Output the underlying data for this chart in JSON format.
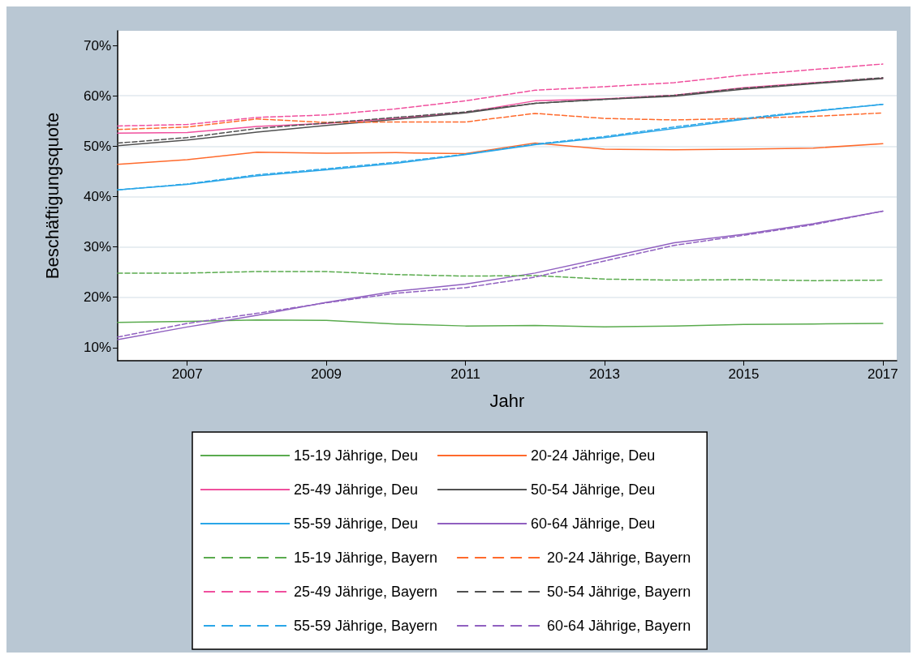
{
  "chart_data": {
    "type": "line",
    "xlabel": "Jahr",
    "ylabel": "Beschäftigungsquote",
    "x": [
      2006,
      2007,
      2008,
      2009,
      2010,
      2011,
      2012,
      2013,
      2014,
      2015,
      2016,
      2017
    ],
    "xlim": [
      2006,
      2017.2
    ],
    "xticks": [
      2007,
      2009,
      2011,
      2013,
      2015,
      2017
    ],
    "ylim": [
      7.4,
      72.9
    ],
    "yticks": [
      {
        "value": 10,
        "label": "10%"
      },
      {
        "value": 20,
        "label": "20%"
      },
      {
        "value": 30,
        "label": "30%"
      },
      {
        "value": 40,
        "label": "40%"
      },
      {
        "value": 50,
        "label": "50%"
      },
      {
        "value": 60,
        "label": "60%"
      },
      {
        "value": 70,
        "label": "70%"
      }
    ],
    "grid": "y",
    "legend": "bottom",
    "marker": "none",
    "series": [
      {
        "name": "15-19 Jährige, Deu",
        "color": "#5aab4e",
        "line_style": "solid",
        "values": [
          15.0,
          15.2,
          15.5,
          15.4,
          14.7,
          14.3,
          14.4,
          14.1,
          14.3,
          14.6,
          14.7,
          14.8
        ]
      },
      {
        "name": "20-24 Jährige, Deu",
        "color": "#ff6a2c",
        "line_style": "solid",
        "values": [
          46.4,
          47.3,
          48.8,
          48.6,
          48.7,
          48.5,
          50.6,
          49.4,
          49.3,
          49.4,
          49.6,
          50.5
        ]
      },
      {
        "name": "25-49 Jährige, Deu",
        "color": "#f0509e",
        "line_style": "solid",
        "values": [
          52.6,
          52.7,
          53.9,
          54.5,
          55.5,
          56.7,
          59.0,
          59.4,
          60.1,
          61.6,
          62.6,
          63.5
        ]
      },
      {
        "name": "50-54 Jährige, Deu",
        "color": "#505050",
        "line_style": "solid",
        "values": [
          50.1,
          51.2,
          52.8,
          54.1,
          55.3,
          56.6,
          58.5,
          59.3,
          59.9,
          61.3,
          62.4,
          63.4
        ]
      },
      {
        "name": "55-59 Jährige, Deu",
        "color": "#2aa6e8",
        "line_style": "solid",
        "values": [
          41.3,
          42.4,
          44.1,
          45.3,
          46.6,
          48.3,
          50.3,
          51.7,
          53.5,
          55.3,
          56.9,
          58.3
        ]
      },
      {
        "name": "60-64 Jährige, Deu",
        "color": "#9060c0",
        "line_style": "solid",
        "values": [
          11.6,
          14.1,
          16.4,
          19.0,
          21.2,
          22.6,
          24.8,
          27.8,
          30.8,
          32.5,
          34.6,
          37.1
        ]
      },
      {
        "name": "15-19 Jährige, Bayern",
        "color": "#5aab4e",
        "line_style": "dashed",
        "values": [
          24.8,
          24.8,
          25.1,
          25.1,
          24.5,
          24.2,
          24.3,
          23.6,
          23.4,
          23.5,
          23.3,
          23.4
        ]
      },
      {
        "name": "20-24 Jährige, Bayern",
        "color": "#ff6a2c",
        "line_style": "dashed",
        "values": [
          53.3,
          53.8,
          55.4,
          54.7,
          54.8,
          54.8,
          56.5,
          55.5,
          55.2,
          55.5,
          55.9,
          56.6
        ]
      },
      {
        "name": "25-49 Jährige, Bayern",
        "color": "#f0509e",
        "line_style": "dashed",
        "values": [
          54.0,
          54.3,
          55.7,
          56.2,
          57.4,
          59.0,
          61.1,
          61.8,
          62.6,
          64.1,
          65.2,
          66.3
        ]
      },
      {
        "name": "50-54 Jährige, Bayern",
        "color": "#505050",
        "line_style": "dashed",
        "values": [
          50.6,
          51.7,
          53.5,
          54.6,
          55.7,
          56.8,
          58.5,
          59.3,
          60.1,
          61.5,
          62.5,
          63.6
        ]
      },
      {
        "name": "55-59 Jährige, Bayern",
        "color": "#2aa6e8",
        "line_style": "dashed",
        "values": [
          41.3,
          42.5,
          44.3,
          45.5,
          46.8,
          48.4,
          50.4,
          51.9,
          53.8,
          55.5,
          57.0,
          58.3
        ]
      },
      {
        "name": "60-64 Jährige, Bayern",
        "color": "#9060c0",
        "line_style": "dashed",
        "values": [
          12.1,
          14.8,
          16.8,
          18.9,
          20.8,
          21.9,
          24.0,
          27.2,
          30.3,
          32.3,
          34.4,
          37.1
        ]
      }
    ]
  }
}
